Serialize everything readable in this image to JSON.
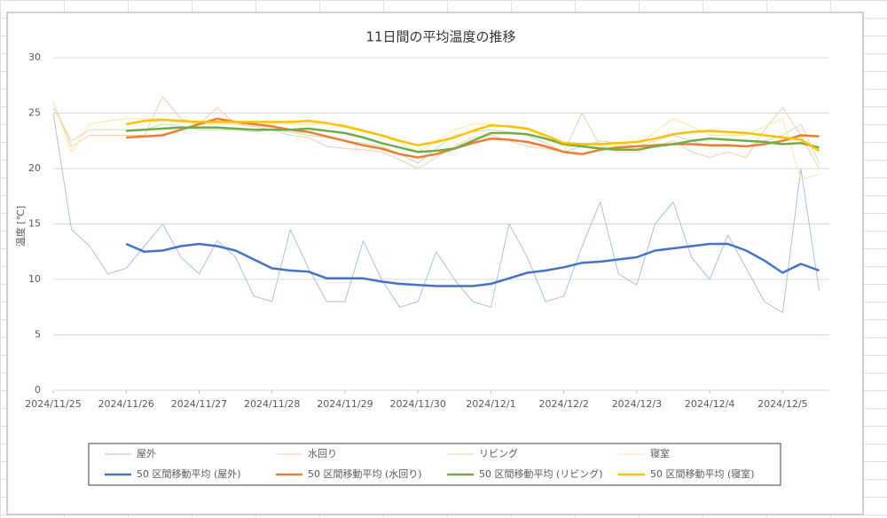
{
  "chart_data": {
    "type": "line",
    "title": "11日間の平均温度の推移",
    "y_label": "温度 [℃]",
    "x": [
      0,
      0.25,
      0.5,
      0.75,
      1,
      1.25,
      1.5,
      1.75,
      2,
      2.25,
      2.5,
      2.75,
      3,
      3.25,
      3.5,
      3.75,
      4,
      4.25,
      4.5,
      4.75,
      5,
      5.25,
      5.5,
      5.75,
      6,
      6.25,
      6.5,
      6.75,
      7,
      7.25,
      7.5,
      7.75,
      8,
      8.25,
      8.5,
      8.75,
      9,
      9.25,
      9.5,
      9.75,
      10,
      10.25,
      10.5
    ],
    "xlim": [
      0,
      10.64
    ],
    "xticks": [
      {
        "value": 0,
        "label": "2024/11/25"
      },
      {
        "value": 1,
        "label": "2024/11/26"
      },
      {
        "value": 2,
        "label": "2024/11/27"
      },
      {
        "value": 3,
        "label": "2024/11/28"
      },
      {
        "value": 4,
        "label": "2024/11/29"
      },
      {
        "value": 5,
        "label": "2024/11/30"
      },
      {
        "value": 6,
        "label": "2024/12/1"
      },
      {
        "value": 7,
        "label": "2024/12/2"
      },
      {
        "value": 8,
        "label": "2024/12/3"
      },
      {
        "value": 9,
        "label": "2024/12/4"
      },
      {
        "value": 10,
        "label": "2024/12/5"
      }
    ],
    "ylim": [
      0,
      30
    ],
    "yticks": [
      0,
      5,
      10,
      15,
      20,
      25,
      30
    ],
    "grid": true,
    "series": [
      {
        "name": "屋外",
        "color": "#a9c1e6",
        "width": 1,
        "values": [
          25,
          14.5,
          13,
          10.5,
          11,
          13,
          15,
          12,
          10.5,
          13.5,
          12,
          8.5,
          8,
          14.5,
          11,
          8,
          8,
          13.5,
          10,
          7.5,
          8,
          12.5,
          10,
          8,
          7.5,
          15,
          12,
          8,
          8.5,
          13,
          17,
          10.5,
          9.5,
          15,
          17,
          12,
          10,
          14,
          11,
          8,
          7,
          20,
          9
        ]
      },
      {
        "name": "水回り",
        "color": "#f8cbad",
        "width": 1,
        "values": [
          26,
          22,
          23,
          23,
          23,
          23,
          26.5,
          24.5,
          24,
          25.5,
          24,
          23.8,
          23.5,
          23,
          22.8,
          22,
          21.8,
          21.7,
          21.5,
          20.8,
          20,
          21,
          22,
          22.8,
          23,
          22.5,
          22,
          21.8,
          21.5,
          25,
          22,
          21.5,
          21.5,
          22,
          22.5,
          21.5,
          21,
          21.5,
          21,
          23.5,
          25.5,
          23,
          20
        ]
      },
      {
        "name": "リビング",
        "color": "#c5e0b4",
        "width": 1,
        "values": [
          25.5,
          22.5,
          23.5,
          23.5,
          23.5,
          23.5,
          24,
          23.8,
          23.5,
          23.5,
          23.5,
          23.3,
          23.5,
          23.3,
          23,
          22.8,
          22.5,
          22.3,
          22,
          21.3,
          20.5,
          21.8,
          23,
          23.3,
          23.5,
          23.3,
          23,
          22.3,
          21.5,
          22,
          22.5,
          22.3,
          22,
          22.5,
          23,
          22.5,
          22,
          22,
          22,
          22.5,
          23,
          24,
          20.5
        ]
      },
      {
        "name": "寝室",
        "color": "#ffe699",
        "width": 1,
        "values": [
          26,
          21.5,
          24,
          24.3,
          24.5,
          24.5,
          24.5,
          24.2,
          24,
          24,
          24,
          24,
          24,
          24,
          24,
          24,
          24,
          23.5,
          23,
          22.3,
          21.5,
          22.5,
          23.5,
          24,
          24,
          23.8,
          23.5,
          22.8,
          22,
          22,
          22,
          22,
          22,
          23.3,
          24.5,
          23.8,
          23,
          23,
          23,
          23.8,
          24.5,
          19,
          19.5
        ]
      },
      {
        "name": "50 区間移動平均 (屋外)",
        "color": "#4472c4",
        "width": 2.5,
        "values": [
          null,
          null,
          null,
          null,
          13.2,
          12.5,
          12.6,
          13,
          13.2,
          13,
          12.6,
          11.8,
          11,
          10.8,
          10.7,
          10.1,
          10.1,
          10.1,
          9.8,
          9.6,
          9.5,
          9.4,
          9.4,
          9.4,
          9.6,
          10.1,
          10.6,
          10.8,
          11.1,
          11.5,
          11.6,
          11.8,
          12,
          12.6,
          12.8,
          13,
          13.2,
          13.2,
          12.6,
          11.7,
          10.6,
          11.4,
          10.8
        ]
      },
      {
        "name": "50 区間移動平均 (水回り)",
        "color": "#ed7d31",
        "width": 2.5,
        "values": [
          null,
          null,
          null,
          null,
          22.8,
          22.9,
          23,
          23.5,
          24,
          24.5,
          24.2,
          24,
          23.8,
          23.5,
          23.3,
          22.9,
          22.5,
          22.1,
          21.8,
          21.3,
          21,
          21.3,
          21.8,
          22.3,
          22.7,
          22.6,
          22.4,
          22,
          21.5,
          21.3,
          21.7,
          21.9,
          22,
          22.1,
          22.2,
          22.2,
          22.1,
          22.1,
          22,
          22.2,
          22.5,
          23,
          22.9
        ]
      },
      {
        "name": "50 区間移動平均 (リビング)",
        "color": "#70ad47",
        "width": 2.5,
        "values": [
          null,
          null,
          null,
          null,
          23.4,
          23.5,
          23.6,
          23.7,
          23.7,
          23.7,
          23.6,
          23.5,
          23.5,
          23.5,
          23.6,
          23.4,
          23.2,
          22.8,
          22.3,
          21.9,
          21.5,
          21.6,
          21.8,
          22.5,
          23.2,
          23.2,
          23.1,
          22.7,
          22.2,
          22,
          21.8,
          21.7,
          21.7,
          22,
          22.2,
          22.5,
          22.7,
          22.6,
          22.5,
          22.4,
          22.2,
          22.3,
          21.9
        ]
      },
      {
        "name": "50 区間移動平均 (寝室)",
        "color": "#ffc000",
        "width": 2.5,
        "values": [
          null,
          null,
          null,
          null,
          24,
          24.3,
          24.4,
          24.3,
          24.2,
          24.2,
          24.2,
          24.2,
          24.2,
          24.2,
          24.3,
          24.1,
          23.8,
          23.4,
          23,
          22.5,
          22.1,
          22.4,
          22.8,
          23.4,
          23.9,
          23.8,
          23.6,
          23,
          22.3,
          22.2,
          22.2,
          22.3,
          22.4,
          22.7,
          23.1,
          23.3,
          23.4,
          23.3,
          23.2,
          23,
          22.8,
          22.6,
          21.6
        ]
      }
    ]
  }
}
